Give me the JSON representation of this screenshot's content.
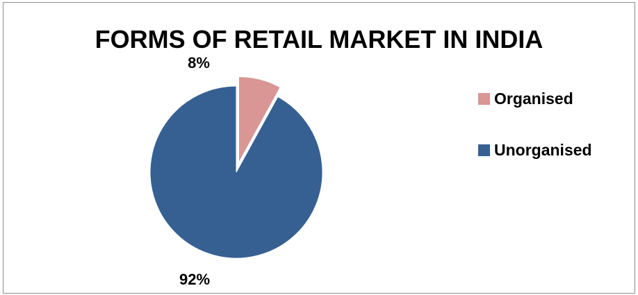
{
  "chart_data": {
    "type": "pie",
    "title": "FORMS OF RETAIL MARKET IN INDIA",
    "slices": [
      {
        "label": "Organised",
        "value": 8,
        "data_label": "8%",
        "color": "#d99694",
        "exploded": true
      },
      {
        "label": "Unorganised",
        "value": 92,
        "data_label": "92%",
        "color": "#376092",
        "exploded": false
      }
    ],
    "legend_position": "right"
  }
}
